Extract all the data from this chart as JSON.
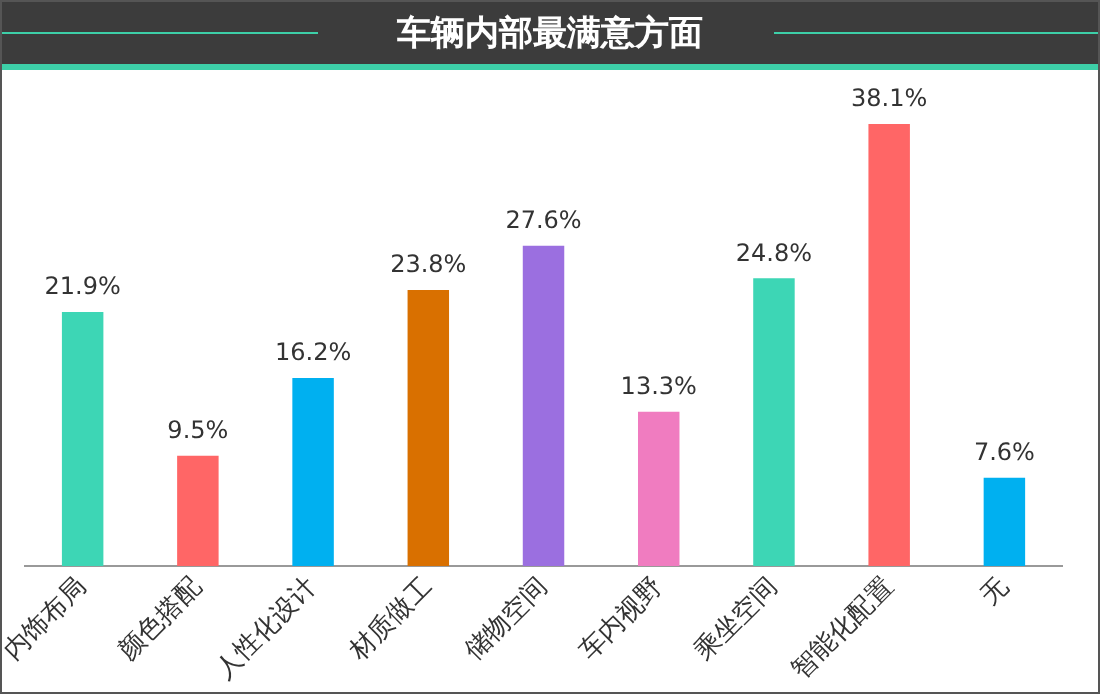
{
  "chart_data": {
    "type": "bar",
    "title": "车辆内部最满意方面",
    "categories": [
      "内饰布局",
      "颜色搭配",
      "人性化设计",
      "材质做工",
      "储物空间",
      "车内视野",
      "乘坐空间",
      "智能化配置",
      "无"
    ],
    "values": [
      21.9,
      9.5,
      16.2,
      23.8,
      27.6,
      13.3,
      24.8,
      38.1,
      7.6
    ],
    "colors": [
      "#3dd6b5",
      "#ff6666",
      "#00b0f0",
      "#d97000",
      "#9b6fe0",
      "#f07cc0",
      "#3dd6b5",
      "#ff6666",
      "#00b0f0"
    ],
    "value_labels": [
      "21.9%",
      "9.5%",
      "16.2%",
      "23.8%",
      "27.6%",
      "13.3%",
      "24.8%",
      "38.1%",
      "7.6%"
    ],
    "grid": false,
    "legend": false
  }
}
